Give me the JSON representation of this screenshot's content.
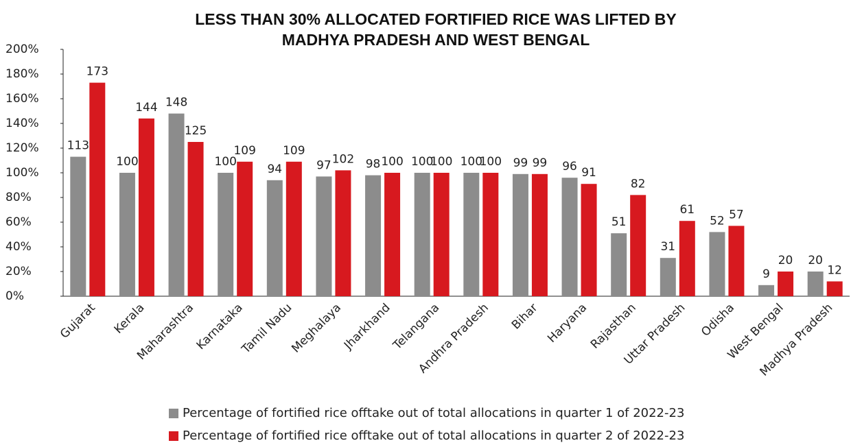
{
  "chart_data": {
    "type": "bar",
    "title": [
      "LESS THAN 30% ALLOCATED FORTIFIED RICE WAS LIFTED BY",
      "MADHYA PRADESH AND WEST BENGAL"
    ],
    "categories": [
      "Gujarat",
      "Kerala",
      "Maharashtra",
      "Karnataka",
      "Tamil Nadu",
      "Meghalaya",
      "Jharkhand",
      "Telangana",
      "Andhra Pradesh",
      "Bihar",
      "Haryana",
      "Rajasthan",
      "Uttar Pradesh",
      "Odisha",
      "West Bengal",
      "Madhya Pradesh"
    ],
    "series": [
      {
        "name": "Percentage of fortified rice offtake out of total allocations in quarter 1 of 2022-23",
        "color": "#8c8c8c",
        "values": [
          113,
          100,
          148,
          100,
          94,
          97,
          98,
          100,
          100,
          99,
          96,
          51,
          31,
          52,
          9,
          20
        ]
      },
      {
        "name": "Percentage of fortified rice offtake out of total allocations in quarter 2 of 2022-23",
        "color": "#d7191f",
        "values": [
          173,
          144,
          125,
          109,
          109,
          102,
          100,
          100,
          100,
          99,
          91,
          82,
          61,
          57,
          20,
          12
        ]
      }
    ],
    "ylim": [
      0,
      200
    ],
    "yticks": [
      {
        "value": 0,
        "label": "0%"
      },
      {
        "value": 20,
        "label": "20%"
      },
      {
        "value": 40,
        "label": "40%"
      },
      {
        "value": 60,
        "label": "60%"
      },
      {
        "value": 80,
        "label": "80%"
      },
      {
        "value": 100,
        "label": "100%"
      },
      {
        "value": 120,
        "label": "120%"
      },
      {
        "value": 140,
        "label": "140%"
      },
      {
        "value": 160,
        "label": "160%"
      },
      {
        "value": 180,
        "label": "180%"
      },
      {
        "value": 200,
        "label": "200%"
      }
    ],
    "grid": false
  }
}
